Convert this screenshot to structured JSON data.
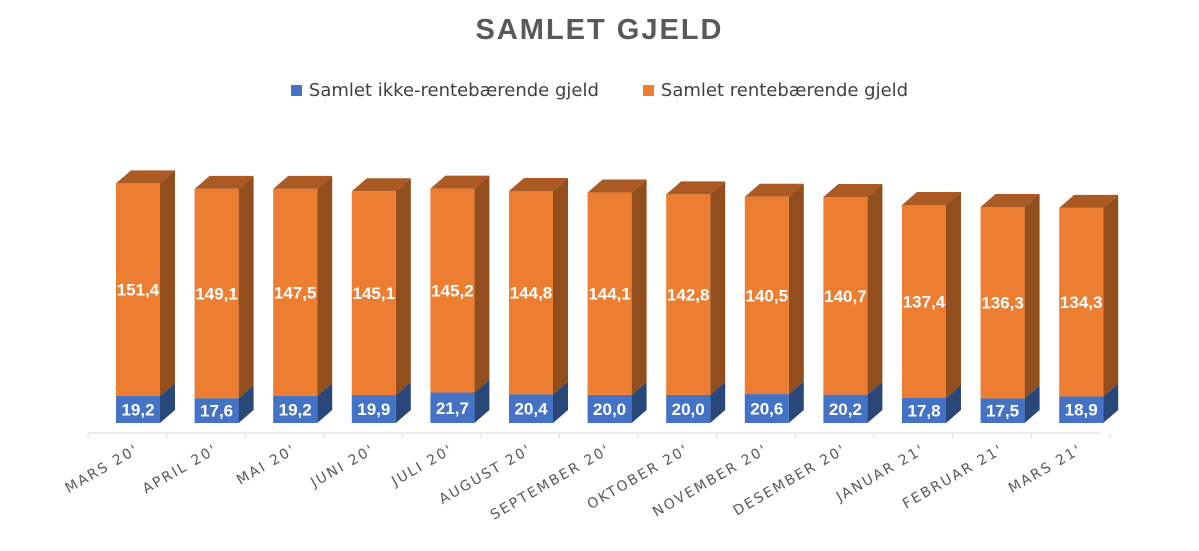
{
  "chart_data": {
    "type": "bar",
    "stacked": true,
    "title": "SAMLET GJELD",
    "categories": [
      "MARS 20'",
      "APRIL 20'",
      "MAI 20'",
      "JUNI 20'",
      "JULI 20'",
      "AUGUST 20'",
      "SEPTEMBER 20'",
      "OKTOBER 20'",
      "NOVEMBER 20'",
      "DESEMBER 20'",
      "JANUAR 21'",
      "FEBRUAR 21'",
      "MARS 21'"
    ],
    "series": [
      {
        "name": "Samlet ikke-rentebærende gjeld",
        "color": "#4472C4",
        "values": [
          19.2,
          17.6,
          19.2,
          19.9,
          21.7,
          20.4,
          20.0,
          20.0,
          20.6,
          20.2,
          17.8,
          17.5,
          18.9
        ],
        "labels": [
          "19,2",
          "17,6",
          "19,2",
          "19,9",
          "21,7",
          "20,4",
          "20,0",
          "20,0",
          "20,6",
          "20,2",
          "17,8",
          "17,5",
          "18,9"
        ]
      },
      {
        "name": "Samlet rentebærende gjeld",
        "color": "#ED7D31",
        "values": [
          151.4,
          149.1,
          147.5,
          145.1,
          145.2,
          144.8,
          144.1,
          142.8,
          140.5,
          140.7,
          137.4,
          136.3,
          134.3
        ],
        "labels": [
          "151,4",
          "149,1",
          "147,5",
          "145,1",
          "145,2",
          "144,8",
          "144,1",
          "142,8",
          "140,5",
          "140,7",
          "137,4",
          "136,3",
          "134,3"
        ]
      }
    ],
    "legend_position": "top",
    "grid": false
  }
}
